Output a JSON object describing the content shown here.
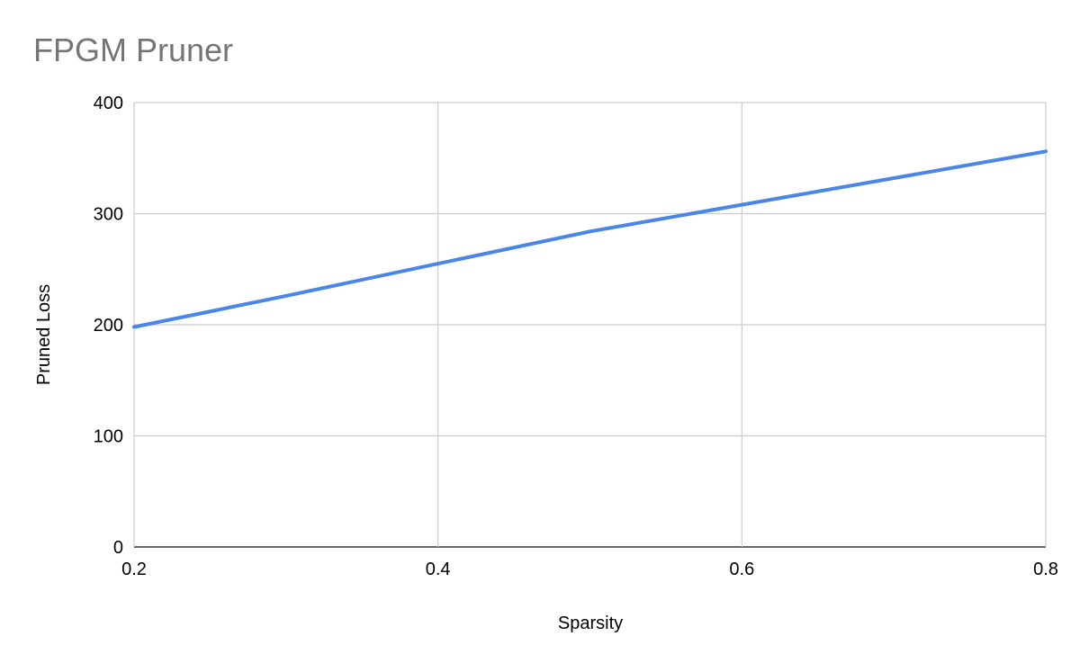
{
  "chart_data": {
    "type": "line",
    "title": "FPGM Pruner",
    "xlabel": "Sparsity",
    "ylabel": "Pruned Loss",
    "x": [
      0.2,
      0.3,
      0.4,
      0.5,
      0.6,
      0.7,
      0.8
    ],
    "series": [
      {
        "name": "",
        "values": [
          198,
          226,
          255,
          284,
          308,
          332,
          356
        ]
      }
    ],
    "xlim": [
      0.2,
      0.8
    ],
    "ylim": [
      0,
      400
    ],
    "xticks": [
      "0.2",
      "0.4",
      "0.6",
      "0.8"
    ],
    "xtick_values": [
      0.2,
      0.4,
      0.6,
      0.8
    ],
    "yticks": [
      "0",
      "100",
      "200",
      "300",
      "400"
    ],
    "ytick_values": [
      0,
      100,
      200,
      300,
      400
    ],
    "grid": true,
    "legend": "none",
    "colors": {
      "series": "#4a86e8",
      "grid": "#cccccc",
      "title": "#757575"
    }
  }
}
